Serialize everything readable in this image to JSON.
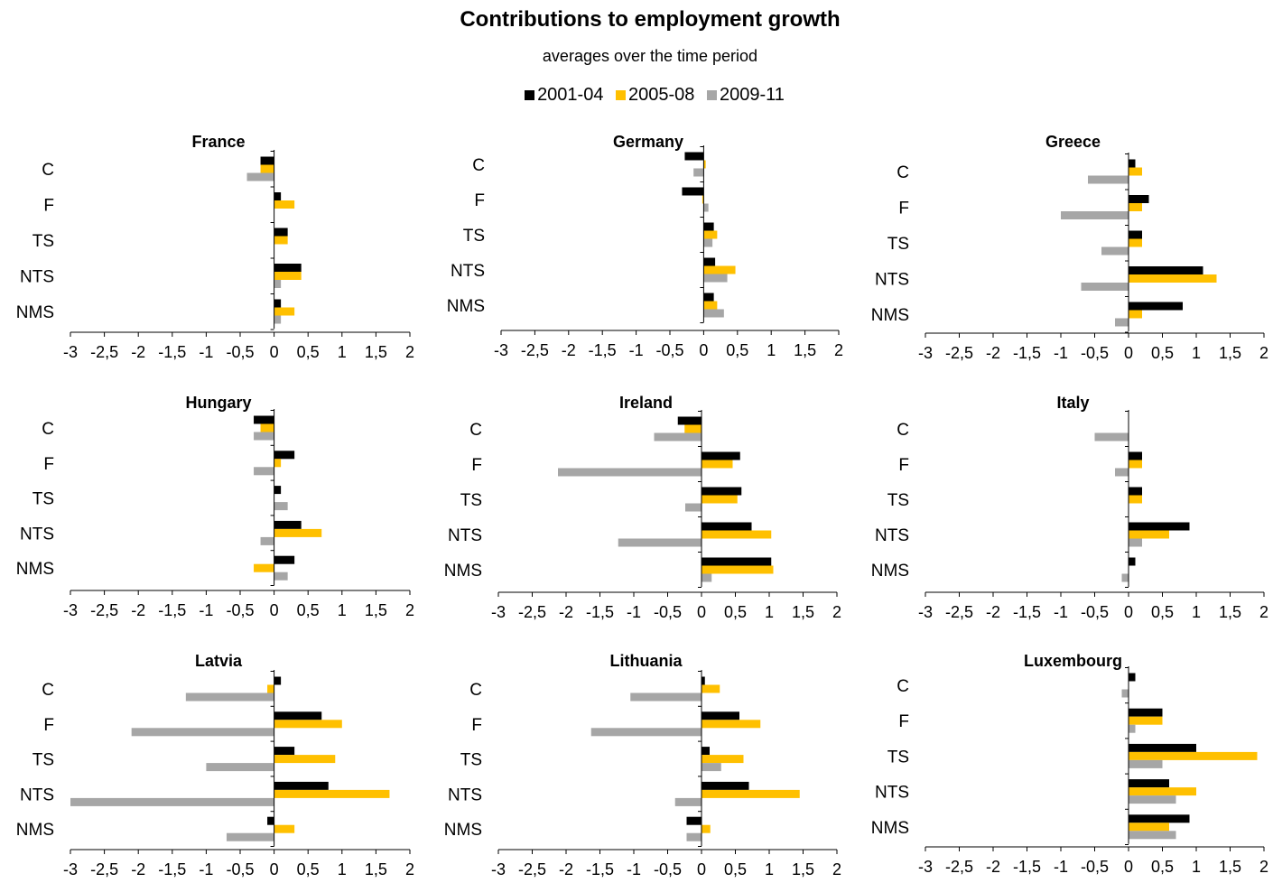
{
  "figure": {
    "title": "Contributions to employment growth",
    "subtitle": "averages over the time period"
  },
  "legend": [
    {
      "name": "2001-04",
      "color": "#000000"
    },
    {
      "name": "2005-08",
      "color": "#FFC000"
    },
    {
      "name": "2009-11",
      "color": "#A6A6A6"
    }
  ],
  "chart_data": [
    {
      "type": "bar",
      "orientation": "horizontal",
      "title": "France",
      "categories": [
        "C",
        "F",
        "TS",
        "NTS",
        "NMS"
      ],
      "xlim": [
        -3,
        2
      ],
      "xticks": [
        "-3",
        "-2,5",
        "-2",
        "-1,5",
        "-1",
        "-0,5",
        "0",
        "0,5",
        "1",
        "1,5",
        "2"
      ],
      "series": [
        {
          "name": "2001-04",
          "values": [
            -0.2,
            0.1,
            0.2,
            0.4,
            0.1
          ]
        },
        {
          "name": "2005-08",
          "values": [
            -0.2,
            0.3,
            0.2,
            0.4,
            0.3
          ]
        },
        {
          "name": "2009-11",
          "values": [
            -0.4,
            0.0,
            0.0,
            0.1,
            0.1
          ]
        }
      ]
    },
    {
      "type": "bar",
      "orientation": "horizontal",
      "title": "Germany",
      "categories": [
        "C",
        "F",
        "TS",
        "NTS",
        "NMS"
      ],
      "xlim": [
        -3,
        2
      ],
      "xticks": [
        "-3",
        "-2,5",
        "-2",
        "-1,5",
        "-1",
        "-0,5",
        "0",
        "0,5",
        "1",
        "1,5",
        "2"
      ],
      "series": [
        {
          "name": "2001-04",
          "values": [
            -0.28,
            -0.32,
            0.15,
            0.17,
            0.15
          ]
        },
        {
          "name": "2005-08",
          "values": [
            0.03,
            -0.02,
            0.2,
            0.47,
            0.2
          ]
        },
        {
          "name": "2009-11",
          "values": [
            -0.15,
            0.07,
            0.13,
            0.35,
            0.3
          ]
        }
      ]
    },
    {
      "type": "bar",
      "orientation": "horizontal",
      "title": "Greece",
      "categories": [
        "C",
        "F",
        "TS",
        "NTS",
        "NMS"
      ],
      "xlim": [
        -3,
        2
      ],
      "xticks": [
        "-3",
        "-2,5",
        "-2",
        "-1,5",
        "-1",
        "-0,5",
        "0",
        "0,5",
        "1",
        "1,5",
        "2"
      ],
      "series": [
        {
          "name": "2001-04",
          "values": [
            0.1,
            0.3,
            0.2,
            1.1,
            0.8
          ]
        },
        {
          "name": "2005-08",
          "values": [
            0.2,
            0.2,
            0.2,
            1.3,
            0.2
          ]
        },
        {
          "name": "2009-11",
          "values": [
            -0.6,
            -1.0,
            -0.4,
            -0.7,
            -0.2
          ]
        }
      ]
    },
    {
      "type": "bar",
      "orientation": "horizontal",
      "title": "Hungary",
      "categories": [
        "C",
        "F",
        "TS",
        "NTS",
        "NMS"
      ],
      "xlim": [
        -3,
        2
      ],
      "xticks": [
        "-3",
        "-2,5",
        "-2",
        "-1,5",
        "-1",
        "-0,5",
        "0",
        "0,5",
        "1",
        "1,5",
        "2"
      ],
      "series": [
        {
          "name": "2001-04",
          "values": [
            -0.3,
            0.3,
            0.1,
            0.4,
            0.3
          ]
        },
        {
          "name": "2005-08",
          "values": [
            -0.2,
            0.1,
            0.0,
            0.7,
            -0.3
          ]
        },
        {
          "name": "2009-11",
          "values": [
            -0.3,
            -0.3,
            0.2,
            -0.2,
            0.2
          ]
        }
      ]
    },
    {
      "type": "bar",
      "orientation": "horizontal",
      "title": "Ireland",
      "categories": [
        "C",
        "F",
        "TS",
        "NTS",
        "NMS"
      ],
      "xlim": [
        -3,
        2
      ],
      "xticks": [
        "-3",
        "-2,5",
        "-2",
        "-1,5",
        "-1",
        "-0,5",
        "0",
        "0,5",
        "1",
        "1,5",
        "2"
      ],
      "series": [
        {
          "name": "2001-04",
          "values": [
            -0.35,
            0.57,
            0.59,
            0.74,
            1.03
          ]
        },
        {
          "name": "2005-08",
          "values": [
            -0.25,
            0.46,
            0.53,
            1.03,
            1.06
          ]
        },
        {
          "name": "2009-11",
          "values": [
            -0.7,
            -2.12,
            -0.24,
            -1.23,
            0.15
          ]
        }
      ]
    },
    {
      "type": "bar",
      "orientation": "horizontal",
      "title": "Italy",
      "categories": [
        "C",
        "F",
        "TS",
        "NTS",
        "NMS"
      ],
      "xlim": [
        -3,
        2
      ],
      "xticks": [
        "-3",
        "-2,5",
        "-2",
        "-1,5",
        "-1",
        "-0,5",
        "0",
        "0,5",
        "1",
        "1,5",
        "2"
      ],
      "series": [
        {
          "name": "2001-04",
          "values": [
            0.0,
            0.2,
            0.2,
            0.9,
            0.1
          ]
        },
        {
          "name": "2005-08",
          "values": [
            0.0,
            0.2,
            0.2,
            0.6,
            0.0
          ]
        },
        {
          "name": "2009-11",
          "values": [
            -0.5,
            -0.2,
            0.0,
            0.2,
            -0.1
          ]
        }
      ]
    },
    {
      "type": "bar",
      "orientation": "horizontal",
      "title": "Latvia",
      "categories": [
        "C",
        "F",
        "TS",
        "NTS",
        "NMS"
      ],
      "xlim": [
        -3,
        2
      ],
      "xticks": [
        "-3",
        "-2,5",
        "-2",
        "-1,5",
        "-1",
        "-0,5",
        "0",
        "0,5",
        "1",
        "1,5",
        "2"
      ],
      "series": [
        {
          "name": "2001-04",
          "values": [
            0.1,
            0.7,
            0.3,
            0.8,
            -0.1
          ]
        },
        {
          "name": "2005-08",
          "values": [
            -0.1,
            1.0,
            0.9,
            1.7,
            0.3
          ]
        },
        {
          "name": "2009-11",
          "values": [
            -1.3,
            -2.1,
            -1.0,
            -3.0,
            -0.7
          ]
        }
      ]
    },
    {
      "type": "bar",
      "orientation": "horizontal",
      "title": "Lithuania",
      "categories": [
        "C",
        "F",
        "TS",
        "NTS",
        "NMS"
      ],
      "xlim": [
        -3,
        2
      ],
      "xticks": [
        "-3",
        "-2,5",
        "-2",
        "-1,5",
        "-1",
        "-0,5",
        "0",
        "0,5",
        "1",
        "1,5",
        "2"
      ],
      "series": [
        {
          "name": "2001-04",
          "values": [
            0.05,
            0.56,
            0.12,
            0.7,
            -0.22
          ]
        },
        {
          "name": "2005-08",
          "values": [
            0.27,
            0.87,
            0.62,
            1.45,
            0.13
          ]
        },
        {
          "name": "2009-11",
          "values": [
            -1.05,
            -1.63,
            0.29,
            -0.39,
            -0.22
          ]
        }
      ]
    },
    {
      "type": "bar",
      "orientation": "horizontal",
      "title": "Luxembourg",
      "categories": [
        "C",
        "F",
        "TS",
        "NTS",
        "NMS"
      ],
      "xlim": [
        -3,
        2
      ],
      "xticks": [
        "-3",
        "-2,5",
        "-2",
        "-1,5",
        "-1",
        "-0,5",
        "0",
        "0,5",
        "1",
        "1,5",
        "2"
      ],
      "series": [
        {
          "name": "2001-04",
          "values": [
            0.1,
            0.5,
            1.0,
            0.6,
            0.9
          ]
        },
        {
          "name": "2005-08",
          "values": [
            0.0,
            0.5,
            1.9,
            1.0,
            0.6
          ]
        },
        {
          "name": "2009-11",
          "values": [
            -0.1,
            0.1,
            0.5,
            0.7,
            0.7
          ]
        }
      ]
    }
  ]
}
